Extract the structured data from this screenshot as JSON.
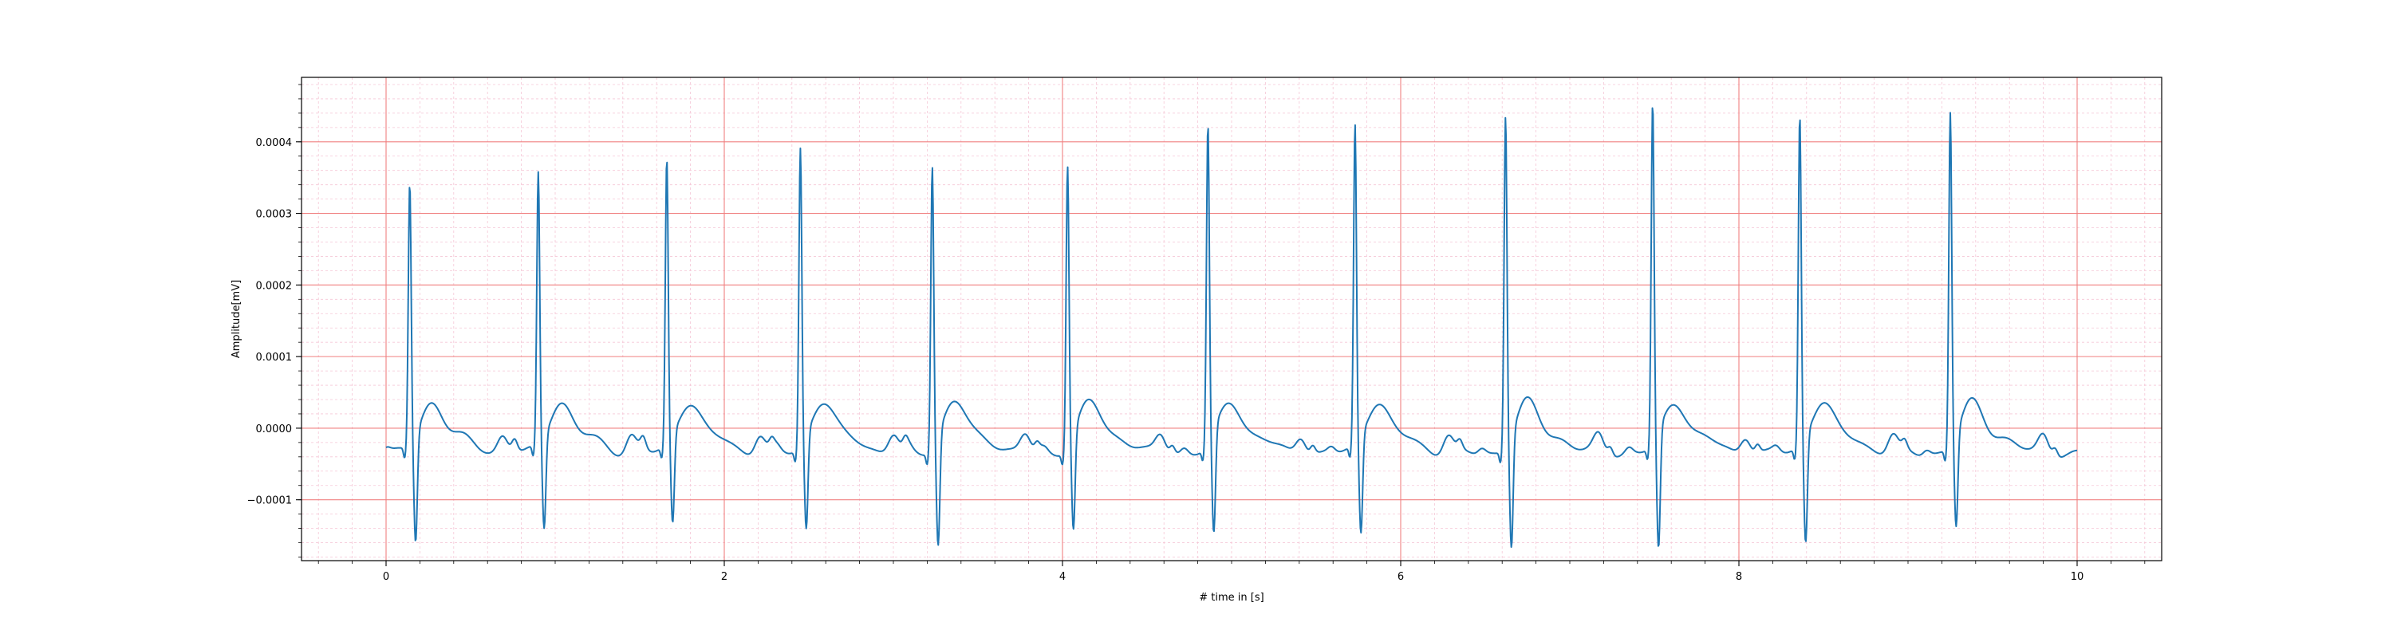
{
  "chart_data": {
    "type": "line",
    "title": "",
    "xlabel": "# time in [s]",
    "ylabel": "Amplitude[mV]",
    "xlim": [
      -0.5,
      10.5
    ],
    "ylim": [
      -0.000185,
      0.00049
    ],
    "x_ticks": [
      0,
      2,
      4,
      6,
      8,
      10
    ],
    "x_tick_labels": [
      "0",
      "2",
      "4",
      "6",
      "8",
      "10"
    ],
    "y_ticks": [
      -0.0001,
      0.0,
      0.0001,
      0.0002,
      0.0003,
      0.0004
    ],
    "y_tick_labels": [
      "−0.0001",
      "0.0000",
      "0.0001",
      "0.0002",
      "0.0003",
      "0.0004"
    ],
    "grid": true,
    "grid_major_color": "#f08080",
    "grid_minor_color": "#f5c6d6",
    "line_color": "#1f77b4",
    "beats": [
      {
        "t": 0.14,
        "peak": 0.00035,
        "trough": -0.00014
      },
      {
        "t": 0.9,
        "peak": 0.000363,
        "trough": -0.00012
      },
      {
        "t": 1.66,
        "peak": 0.000382,
        "trough": -0.000115
      },
      {
        "t": 2.45,
        "peak": 0.0004,
        "trough": -0.000122
      },
      {
        "t": 3.23,
        "peak": 0.000378,
        "trough": -0.000145
      },
      {
        "t": 4.03,
        "peak": 0.000378,
        "trough": -0.000125
      },
      {
        "t": 4.86,
        "peak": 0.00043,
        "trough": -0.000135
      },
      {
        "t": 5.73,
        "peak": 0.00043,
        "trough": -0.000128
      },
      {
        "t": 6.62,
        "peak": 0.000448,
        "trough": -0.000147
      },
      {
        "t": 7.49,
        "peak": 0.00046,
        "trough": -0.000155
      },
      {
        "t": 8.36,
        "peak": 0.000445,
        "trough": -0.00014
      },
      {
        "t": 9.25,
        "peak": 0.00045,
        "trough": -0.00012
      }
    ],
    "t_start": 0.0,
    "t_end": 10.0
  }
}
